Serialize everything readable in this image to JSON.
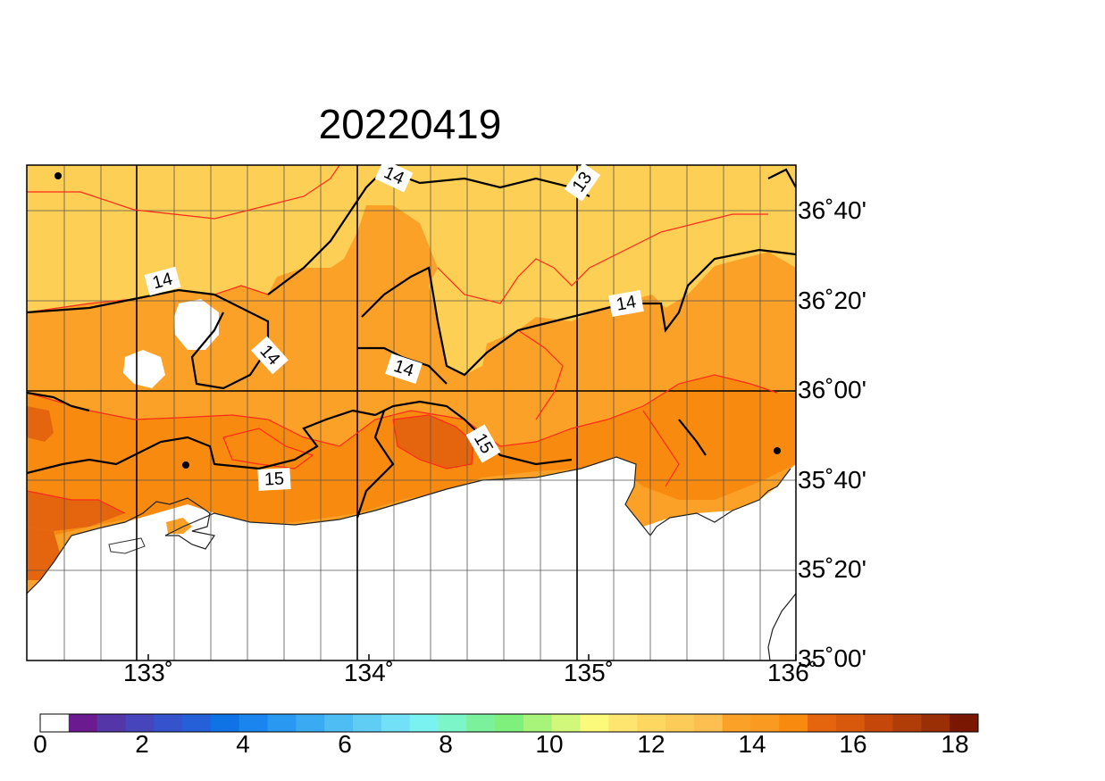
{
  "title": "20220419",
  "map": {
    "lat_labels": [
      "36˚40'",
      "36˚20'",
      "36˚00'",
      "35˚40'",
      "35˚20'",
      "35˚00'"
    ],
    "lon_labels": [
      "133˚",
      "134˚",
      "135˚",
      "136˚"
    ],
    "contour_labels": [
      "14",
      "13",
      "14",
      "14",
      "14",
      "14",
      "15",
      "15"
    ],
    "fill_colors": {
      "land_13_14": "#fdd055",
      "land_14_15": "#fba128",
      "land_15_16": "#f88b0f",
      "land_16_17": "#e5650f",
      "sea": "#ffffff"
    }
  },
  "colorbar": {
    "tick_labels": [
      "0",
      "2",
      "4",
      "6",
      "8",
      "10",
      "12",
      "14",
      "16",
      "18"
    ],
    "colors": [
      "#ffffff",
      "#6b1a8f",
      "#5536a8",
      "#4645bb",
      "#3553cc",
      "#2560d8",
      "#0f73e6",
      "#1a85ee",
      "#2898f0",
      "#3aaaf2",
      "#4ebdf3",
      "#60cef4",
      "#72e0f6",
      "#7af2ef",
      "#7cf5c9",
      "#7cf19b",
      "#7ff07c",
      "#a8f47a",
      "#d1f87a",
      "#fbfa7a",
      "#fde570",
      "#fdd760",
      "#fdcb58",
      "#fdc050",
      "#fba128",
      "#fa9a20",
      "#f88b0f",
      "#e5650f",
      "#d8580c",
      "#c5480a",
      "#b03c08",
      "#9a2f06",
      "#7a1703"
    ]
  }
}
